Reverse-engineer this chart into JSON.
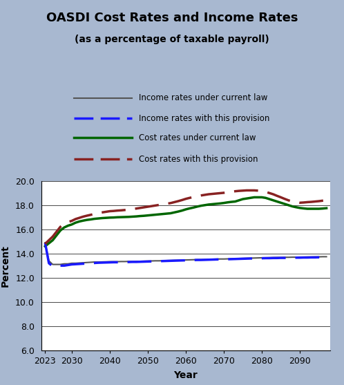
{
  "title": "OASDI Cost Rates and Income Rates",
  "subtitle": "(as a percentage of taxable payroll)",
  "xlabel": "Year",
  "ylabel": "Percent",
  "bg_color": "#a8b8d0",
  "ylim": [
    6.0,
    20.0
  ],
  "yticks": [
    6.0,
    8.0,
    10.0,
    12.0,
    14.0,
    16.0,
    18.0,
    20.0
  ],
  "years": [
    2023,
    2024,
    2025,
    2026,
    2027,
    2028,
    2029,
    2030,
    2031,
    2032,
    2033,
    2034,
    2035,
    2036,
    2037,
    2038,
    2039,
    2040,
    2041,
    2042,
    2043,
    2044,
    2045,
    2046,
    2047,
    2048,
    2049,
    2050,
    2051,
    2052,
    2053,
    2054,
    2055,
    2056,
    2057,
    2058,
    2059,
    2060,
    2061,
    2062,
    2063,
    2064,
    2065,
    2066,
    2067,
    2068,
    2069,
    2070,
    2071,
    2072,
    2073,
    2074,
    2075,
    2076,
    2077,
    2078,
    2079,
    2080,
    2081,
    2082,
    2083,
    2084,
    2085,
    2086,
    2087,
    2088,
    2089,
    2090,
    2091,
    2092,
    2093,
    2094,
    2095,
    2096,
    2097
  ],
  "income_current_law": [
    14.9,
    13.4,
    13.1,
    13.1,
    13.1,
    13.15,
    13.15,
    13.2,
    13.2,
    13.22,
    13.24,
    13.26,
    13.28,
    13.3,
    13.3,
    13.31,
    13.32,
    13.33,
    13.33,
    13.33,
    13.34,
    13.34,
    13.35,
    13.35,
    13.36,
    13.36,
    13.37,
    13.38,
    13.39,
    13.4,
    13.4,
    13.41,
    13.42,
    13.43,
    13.44,
    13.45,
    13.46,
    13.47,
    13.48,
    13.49,
    13.5,
    13.5,
    13.51,
    13.52,
    13.53,
    13.54,
    13.55,
    13.55,
    13.56,
    13.57,
    13.58,
    13.59,
    13.6,
    13.61,
    13.62,
    13.63,
    13.64,
    13.65,
    13.65,
    13.66,
    13.67,
    13.68,
    13.68,
    13.69,
    13.69,
    13.7,
    13.7,
    13.71,
    13.71,
    13.72,
    13.72,
    13.73,
    13.73,
    13.74,
    13.74
  ],
  "income_provision": [
    14.9,
    13.2,
    12.95,
    12.95,
    13.0,
    13.0,
    13.05,
    13.1,
    13.12,
    13.14,
    13.16,
    13.18,
    13.2,
    13.22,
    13.24,
    13.25,
    13.26,
    13.27,
    13.28,
    13.28,
    13.29,
    13.29,
    13.3,
    13.31,
    13.31,
    13.32,
    13.33,
    13.34,
    13.35,
    13.36,
    13.37,
    13.38,
    13.39,
    13.4,
    13.41,
    13.42,
    13.43,
    13.44,
    13.45,
    13.46,
    13.47,
    13.47,
    13.48,
    13.49,
    13.5,
    13.51,
    13.52,
    13.52,
    13.53,
    13.54,
    13.55,
    13.56,
    13.57,
    13.58,
    13.59,
    13.6,
    13.61,
    13.61,
    13.62,
    13.62,
    13.63,
    13.63,
    13.64,
    13.64,
    13.65,
    13.65,
    13.66,
    13.66,
    13.67,
    13.67,
    13.68,
    13.68,
    13.69,
    13.69,
    13.7
  ],
  "cost_current_law": [
    14.6,
    14.85,
    15.1,
    15.5,
    15.9,
    16.15,
    16.3,
    16.4,
    16.55,
    16.65,
    16.72,
    16.78,
    16.82,
    16.87,
    16.9,
    16.93,
    16.95,
    16.97,
    16.98,
    17.0,
    17.01,
    17.02,
    17.03,
    17.05,
    17.07,
    17.1,
    17.12,
    17.15,
    17.18,
    17.21,
    17.24,
    17.27,
    17.3,
    17.33,
    17.4,
    17.47,
    17.55,
    17.65,
    17.73,
    17.8,
    17.88,
    17.95,
    18.0,
    18.05,
    18.08,
    18.11,
    18.14,
    18.18,
    18.23,
    18.27,
    18.3,
    18.4,
    18.5,
    18.55,
    18.6,
    18.65,
    18.65,
    18.65,
    18.6,
    18.5,
    18.4,
    18.3,
    18.2,
    18.1,
    18.0,
    17.9,
    17.83,
    17.77,
    17.73,
    17.7,
    17.7,
    17.7,
    17.7,
    17.72,
    17.75
  ],
  "cost_provision": [
    14.8,
    15.1,
    15.4,
    15.8,
    16.2,
    16.45,
    16.6,
    16.7,
    16.85,
    16.95,
    17.05,
    17.13,
    17.2,
    17.28,
    17.35,
    17.4,
    17.45,
    17.5,
    17.52,
    17.55,
    17.57,
    17.6,
    17.63,
    17.67,
    17.72,
    17.77,
    17.82,
    17.87,
    17.92,
    17.97,
    18.02,
    18.07,
    18.12,
    18.17,
    18.25,
    18.33,
    18.42,
    18.52,
    18.6,
    18.67,
    18.74,
    18.8,
    18.85,
    18.9,
    18.93,
    18.96,
    18.99,
    19.02,
    19.07,
    19.12,
    19.15,
    19.18,
    19.2,
    19.22,
    19.22,
    19.22,
    19.2,
    19.18,
    19.1,
    19.0,
    18.9,
    18.77,
    18.65,
    18.52,
    18.4,
    18.3,
    18.25,
    18.2,
    18.22,
    18.25,
    18.27,
    18.3,
    18.33,
    18.37,
    18.4
  ],
  "color_income_current": "#555555",
  "color_income_provision": "#1a1aff",
  "color_cost_current": "#006600",
  "color_cost_provision": "#882222",
  "legend_labels": [
    "Income rates under current law",
    "Income rates with this provision",
    "Cost rates under current law",
    "Cost rates with this provision"
  ]
}
